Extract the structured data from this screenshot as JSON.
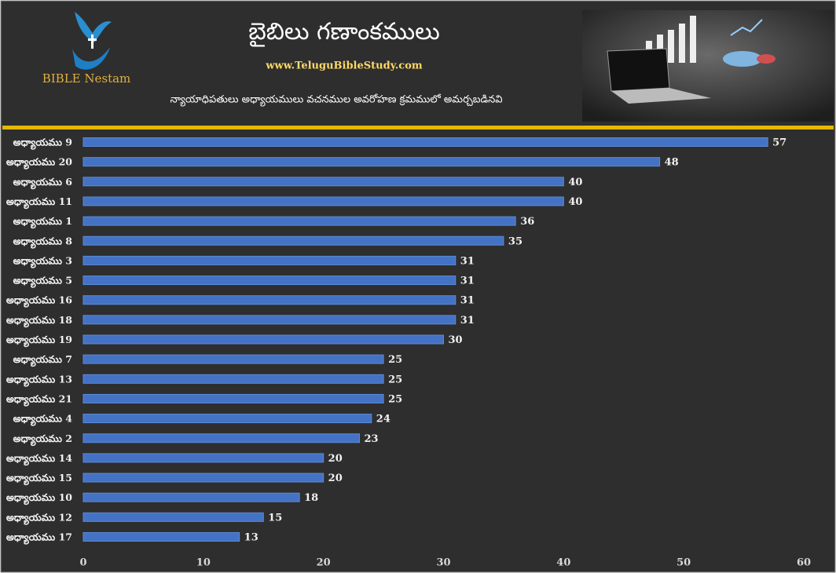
{
  "chart_data": {
    "type": "bar",
    "orientation": "horizontal",
    "title": "బైబిలు గణాంకములు",
    "website": "www.TeluguBibleStudy.com",
    "subtitle": "న్యాయాధిపతులు అధ్యాయములు వచనముల అవరోహణ క్రమములో అమర్చబడినవి",
    "brand": "BIBLE Nestam",
    "categories": [
      "అధ్యాయము 9",
      "అధ్యాయము 20",
      "అధ్యాయము 6",
      "అధ్యాయము 11",
      "అధ్యాయము 1",
      "అధ్యాయము 8",
      "అధ్యాయము 3",
      "అధ్యాయము 5",
      "అధ్యాయము 16",
      "అధ్యాయము 18",
      "అధ్యాయము 19",
      "అధ్యాయము 7",
      "అధ్యాయము 13",
      "అధ్యాయము 21",
      "అధ్యాయము 4",
      "అధ్యాయము 2",
      "అధ్యాయము 14",
      "అధ్యాయము 15",
      "అధ్యాయము 10",
      "అధ్యాయము 12",
      "అధ్యాయము 17"
    ],
    "values": [
      57,
      48,
      40,
      40,
      36,
      35,
      31,
      31,
      31,
      31,
      30,
      25,
      25,
      25,
      24,
      23,
      20,
      20,
      18,
      15,
      13
    ],
    "color": "#4472c4",
    "xlim": [
      0,
      60
    ],
    "xticks": [
      0,
      10,
      20,
      30,
      40,
      50,
      60
    ],
    "grid": false
  }
}
